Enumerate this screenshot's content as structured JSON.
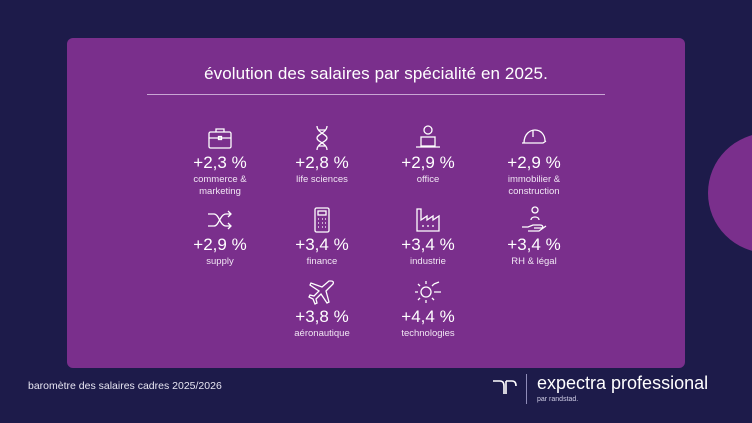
{
  "title": "évolution des salaires par spécialité en 2025.",
  "items": [
    {
      "value": "+2,3 %",
      "label1": "commerce &",
      "label2": "marketing",
      "icon": "briefcase-icon"
    },
    {
      "value": "+2,8 %",
      "label1": "life sciences",
      "label2": "",
      "icon": "dna-icon"
    },
    {
      "value": "+2,9 %",
      "label1": "office",
      "label2": "",
      "icon": "desk-worker-icon"
    },
    {
      "value": "+2,9 %",
      "label1": "immobilier &",
      "label2": "construction",
      "icon": "hard-hat-icon"
    },
    {
      "value": "+2,9 %",
      "label1": "supply",
      "label2": "",
      "icon": "shuffle-icon"
    },
    {
      "value": "+3,4 %",
      "label1": "finance",
      "label2": "",
      "icon": "calculator-icon"
    },
    {
      "value": "+3,4 %",
      "label1": "industrie",
      "label2": "",
      "icon": "factory-icon"
    },
    {
      "value": "+3,4 %",
      "label1": "RH & légal",
      "label2": "",
      "icon": "hand-person-icon"
    },
    {
      "value": "+3,8 %",
      "label1": "aéronautique",
      "label2": "",
      "icon": "airplane-icon"
    },
    {
      "value": "+4,4 %",
      "label1": "technologies",
      "label2": "",
      "icon": "gear-circuit-icon"
    }
  ],
  "footer": {
    "caption": "baromètre des salaires cadres 2025/2026",
    "brand_name": "expectra professional",
    "brand_sub": "par randstad."
  },
  "colors": {
    "background": "#1d1b4a",
    "card": "#7a2f8c"
  }
}
